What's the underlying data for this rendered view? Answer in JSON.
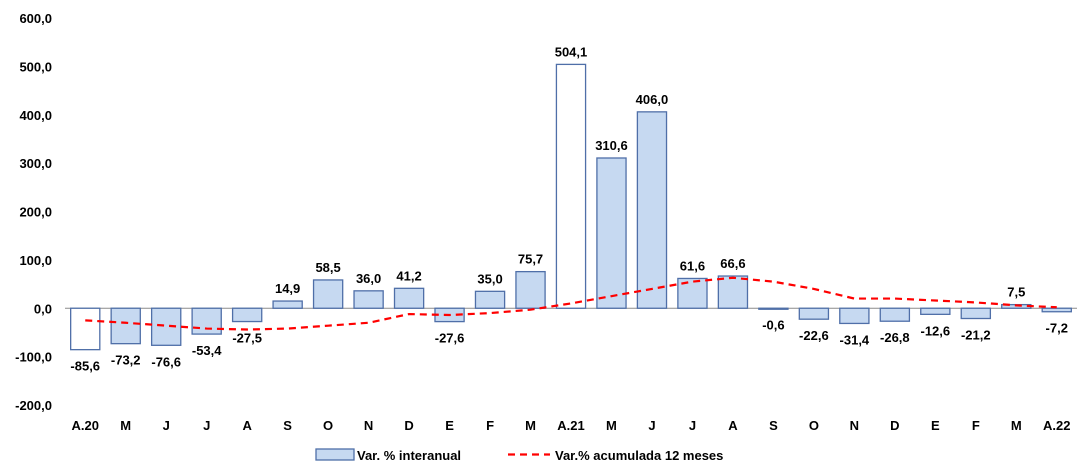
{
  "chart_data": {
    "type": "bar",
    "categories": [
      "A.20",
      "M",
      "J",
      "J",
      "A",
      "S",
      "O",
      "N",
      "D",
      "E",
      "F",
      "M",
      "A.21",
      "M",
      "J",
      "J",
      "A",
      "S",
      "O",
      "N",
      "D",
      "E",
      "F",
      "M",
      "A.22"
    ],
    "series": [
      {
        "name": "Var. % interanual",
        "type": "bar",
        "values": [
          -85.6,
          -73.2,
          -76.6,
          -53.4,
          -27.5,
          14.9,
          58.5,
          36.0,
          41.2,
          -27.6,
          35.0,
          75.7,
          504.1,
          310.6,
          406.0,
          61.6,
          66.6,
          -0.6,
          -22.6,
          -31.4,
          -26.8,
          -12.6,
          -21.2,
          7.5,
          -7.2
        ],
        "data_labels": [
          "-85,6",
          "-73,2",
          "-76,6",
          "-53,4",
          "-27,5",
          "14,9",
          "58,5",
          "36,0",
          "41,2",
          "-27,6",
          "35,0",
          "75,7",
          "504,1",
          "310,6",
          "406,0",
          "61,6",
          "66,6",
          "-0,6",
          "-22,6",
          "-31,4",
          "-26,8",
          "-12,6",
          "-21,2",
          "7,5",
          "-7,2"
        ],
        "color": "#c6d9f1",
        "border_color": "#4f6fa8",
        "unfilled_categories_index": [
          0,
          12
        ]
      },
      {
        "name": "Var.% acumulada 12 meses",
        "type": "line",
        "style": "dashed",
        "color": "#ff0000",
        "values": [
          -25,
          -30,
          -36,
          -42,
          -44,
          -42,
          -36,
          -30,
          -12,
          -14,
          -10,
          -3,
          10,
          25,
          40,
          55,
          63,
          55,
          40,
          20,
          20,
          16,
          12,
          6,
          2
        ]
      }
    ],
    "y_ticks": [
      "600,0",
      "500,0",
      "400,0",
      "300,0",
      "200,0",
      "100,0",
      "0,0",
      "-100,0",
      "-200,0"
    ],
    "ylim": [
      -200,
      600
    ],
    "title": "",
    "xlabel": "",
    "ylabel": "",
    "grid": false,
    "legend": "bottom-center"
  }
}
